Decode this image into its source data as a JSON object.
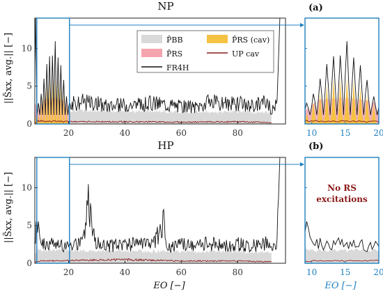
{
  "chart_data": [
    {
      "type": "area",
      "title": "NP",
      "panel_label": "(a)",
      "ylabel": "||S̃xx, avg.|| [−]",
      "xlabel": "",
      "xlim": [
        8,
        97
      ],
      "ylim": [
        0,
        14
      ],
      "xticks": [
        "20",
        "40",
        "60",
        "80"
      ],
      "yticks": [
        "0",
        "5",
        "10"
      ],
      "zoom_xlim": [
        9,
        20
      ],
      "zoom_xticks": [
        "10",
        "15",
        "20"
      ],
      "legend": {
        "position": "top-right",
        "entries": [
          {
            "label": "P̂BB",
            "symbol": "patch",
            "color": "#d9d9d9"
          },
          {
            "label": "P̂RS (cav)",
            "symbol": "patch",
            "color": "#f5c242"
          },
          {
            "label": "P̂RS",
            "symbol": "patch",
            "color": "#f4a5ad"
          },
          {
            "label": "UP cav",
            "symbol": "line",
            "color": "#8b1a1a"
          },
          {
            "label": "FR4H",
            "symbol": "line",
            "color": "#111111"
          }
        ]
      },
      "series": [
        {
          "name": "FR4H",
          "color": "#111111",
          "x": [
            9,
            10,
            11,
            12,
            13,
            14,
            15,
            16,
            17,
            18,
            19,
            20,
            22,
            25,
            30,
            35,
            40,
            45,
            50,
            55,
            60,
            65,
            70,
            75,
            80,
            85,
            90,
            92,
            94,
            95,
            96,
            97
          ],
          "y": [
            2.5,
            3.5,
            5.5,
            7.5,
            9.2,
            8.2,
            11.6,
            9.0,
            8.2,
            6.5,
            3.8,
            3.2,
            3.0,
            3.3,
            3.0,
            2.6,
            2.9,
            2.8,
            3.1,
            2.9,
            2.6,
            2.5,
            3.2,
            2.9,
            3.0,
            2.6,
            3.4,
            2.0,
            3.0,
            14,
            14,
            14
          ]
        },
        {
          "name": "P̂BB",
          "color": "#d9d9d9",
          "x": [
            9,
            20,
            40,
            60,
            80,
            92
          ],
          "y": [
            2.0,
            1.8,
            1.7,
            1.6,
            1.6,
            1.5
          ]
        },
        {
          "name": "P̂RS",
          "color": "#f4a5ad",
          "x": [
            9,
            11,
            13,
            15,
            17,
            19,
            20
          ],
          "y": [
            1.8,
            3.2,
            3.4,
            3.5,
            3.3,
            3.0,
            2.6
          ]
        },
        {
          "name": "P̂RS (cav)",
          "color": "#f5c242",
          "x": [
            9,
            10,
            11,
            12,
            13,
            14,
            15,
            16,
            17,
            18,
            19,
            20
          ],
          "y": [
            1.0,
            2.6,
            3.9,
            4.7,
            6.2,
            5.8,
            6.2,
            6.0,
            5.2,
            4.2,
            3.0,
            1.0
          ]
        },
        {
          "name": "UP cav",
          "color": "#8b1a1a",
          "x": [
            9,
            20,
            40,
            60,
            80,
            92
          ],
          "y": [
            0.4,
            0.3,
            0.3,
            0.25,
            0.3,
            0.2
          ]
        }
      ]
    },
    {
      "type": "area",
      "title": "HP",
      "panel_label": "(b)",
      "ylabel": "||S̃xx, avg.|| [−]",
      "xlabel": "EO [−]",
      "xlim": [
        8,
        97
      ],
      "ylim": [
        0,
        14
      ],
      "xticks": [
        "20",
        "40",
        "60",
        "80"
      ],
      "yticks": [
        "0",
        "5",
        "10"
      ],
      "zoom_xlim": [
        9,
        20
      ],
      "zoom_xticks": [
        "10",
        "15",
        "20"
      ],
      "zoom_xlabel": "EO [−]",
      "annotation": [
        "No RS",
        "excitations"
      ],
      "series": [
        {
          "name": "FR4H",
          "color": "#111111",
          "x": [
            8,
            9,
            10,
            12,
            15,
            20,
            25,
            27,
            30,
            35,
            40,
            45,
            50,
            54,
            55,
            60,
            65,
            70,
            75,
            80,
            85,
            90,
            92,
            94,
            95,
            96,
            97
          ],
          "y": [
            4.0,
            6.0,
            3.0,
            2.6,
            2.9,
            2.7,
            3.0,
            8.8,
            2.8,
            2.6,
            2.9,
            2.7,
            2.6,
            6.2,
            2.5,
            2.7,
            2.5,
            2.9,
            2.6,
            2.8,
            2.5,
            2.9,
            1.8,
            3.0,
            14,
            14,
            14
          ]
        },
        {
          "name": "P̂BB",
          "color": "#d9d9d9",
          "x": [
            9,
            20,
            40,
            60,
            80,
            92
          ],
          "y": [
            1.8,
            1.7,
            1.6,
            1.6,
            1.5,
            1.4
          ]
        },
        {
          "name": "UP cav",
          "color": "#8b1a1a",
          "x": [
            9,
            20,
            40,
            60,
            80,
            92
          ],
          "y": [
            0.3,
            0.35,
            0.5,
            0.3,
            0.3,
            0.2
          ]
        }
      ]
    }
  ]
}
